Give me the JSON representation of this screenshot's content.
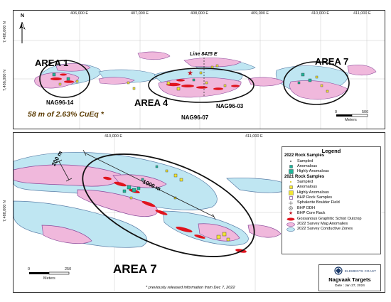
{
  "top_map": {
    "x_ticks": [
      "406,000 E",
      "407,000 E",
      "408,000 E",
      "409,000 E",
      "410,000 E",
      "411,000 E"
    ],
    "y_ticks": [
      "7,488,000 N",
      "7,486,000 N"
    ],
    "north_label": "N",
    "area1_label": "AREA 1",
    "area4_label": "AREA 4",
    "area7_label": "AREA 7",
    "line_label": "Line 8425 E",
    "hole_nag96_14": "NAG96-14",
    "hole_nag96_07": "NAG96-07",
    "hole_nag96_03": "NAG96-03",
    "intercept_text": "58 m of 2.63% CuEq *",
    "scale_zero": "0",
    "scale_max": "500",
    "scale_units": "Meters"
  },
  "bottom_map": {
    "x_ticks": [
      "410,000 E",
      "411,000 E"
    ],
    "y_ticks": [
      "7,488,000 N"
    ],
    "dim_200": "200 m",
    "dim_1000": "1000 m",
    "area7_label": "AREA 7",
    "scale_zero": "0",
    "scale_max": "250",
    "scale_units": "Meters"
  },
  "legend": {
    "title": "Legend",
    "section_2022": "2022 Rock Samples",
    "items_2022": [
      "Sampled",
      "Anomalous",
      "Highly Anomalous"
    ],
    "section_2021": "2021 Rock Samples",
    "items_2021": [
      "Sampled",
      "Anomalous",
      "Highly Anomalous"
    ],
    "items_other": [
      "BHP Rock Samples",
      "Sphalerite Boulder Field",
      "BHP DDH",
      "BHP Core Rack",
      "Gossanous Graphitic Schist Outcrop",
      "2022 Survey Mag Anomalies",
      "2022 Survey Conductive Zones"
    ]
  },
  "title_block": {
    "company": "ELEMENTS COAST",
    "project": "Nagvaak Targets",
    "date": "Date : Jan 27, 2024"
  },
  "footnote": "* previously released information from Dec 7, 2022",
  "colors": {
    "mag_pink": "#f0b8dc",
    "conductive_blue": "#bfe6f2",
    "gossan_red": "#e0141e",
    "teal": "#1fb59a",
    "yellow": "#f3e634",
    "purple_outline": "#7a4a9a"
  }
}
